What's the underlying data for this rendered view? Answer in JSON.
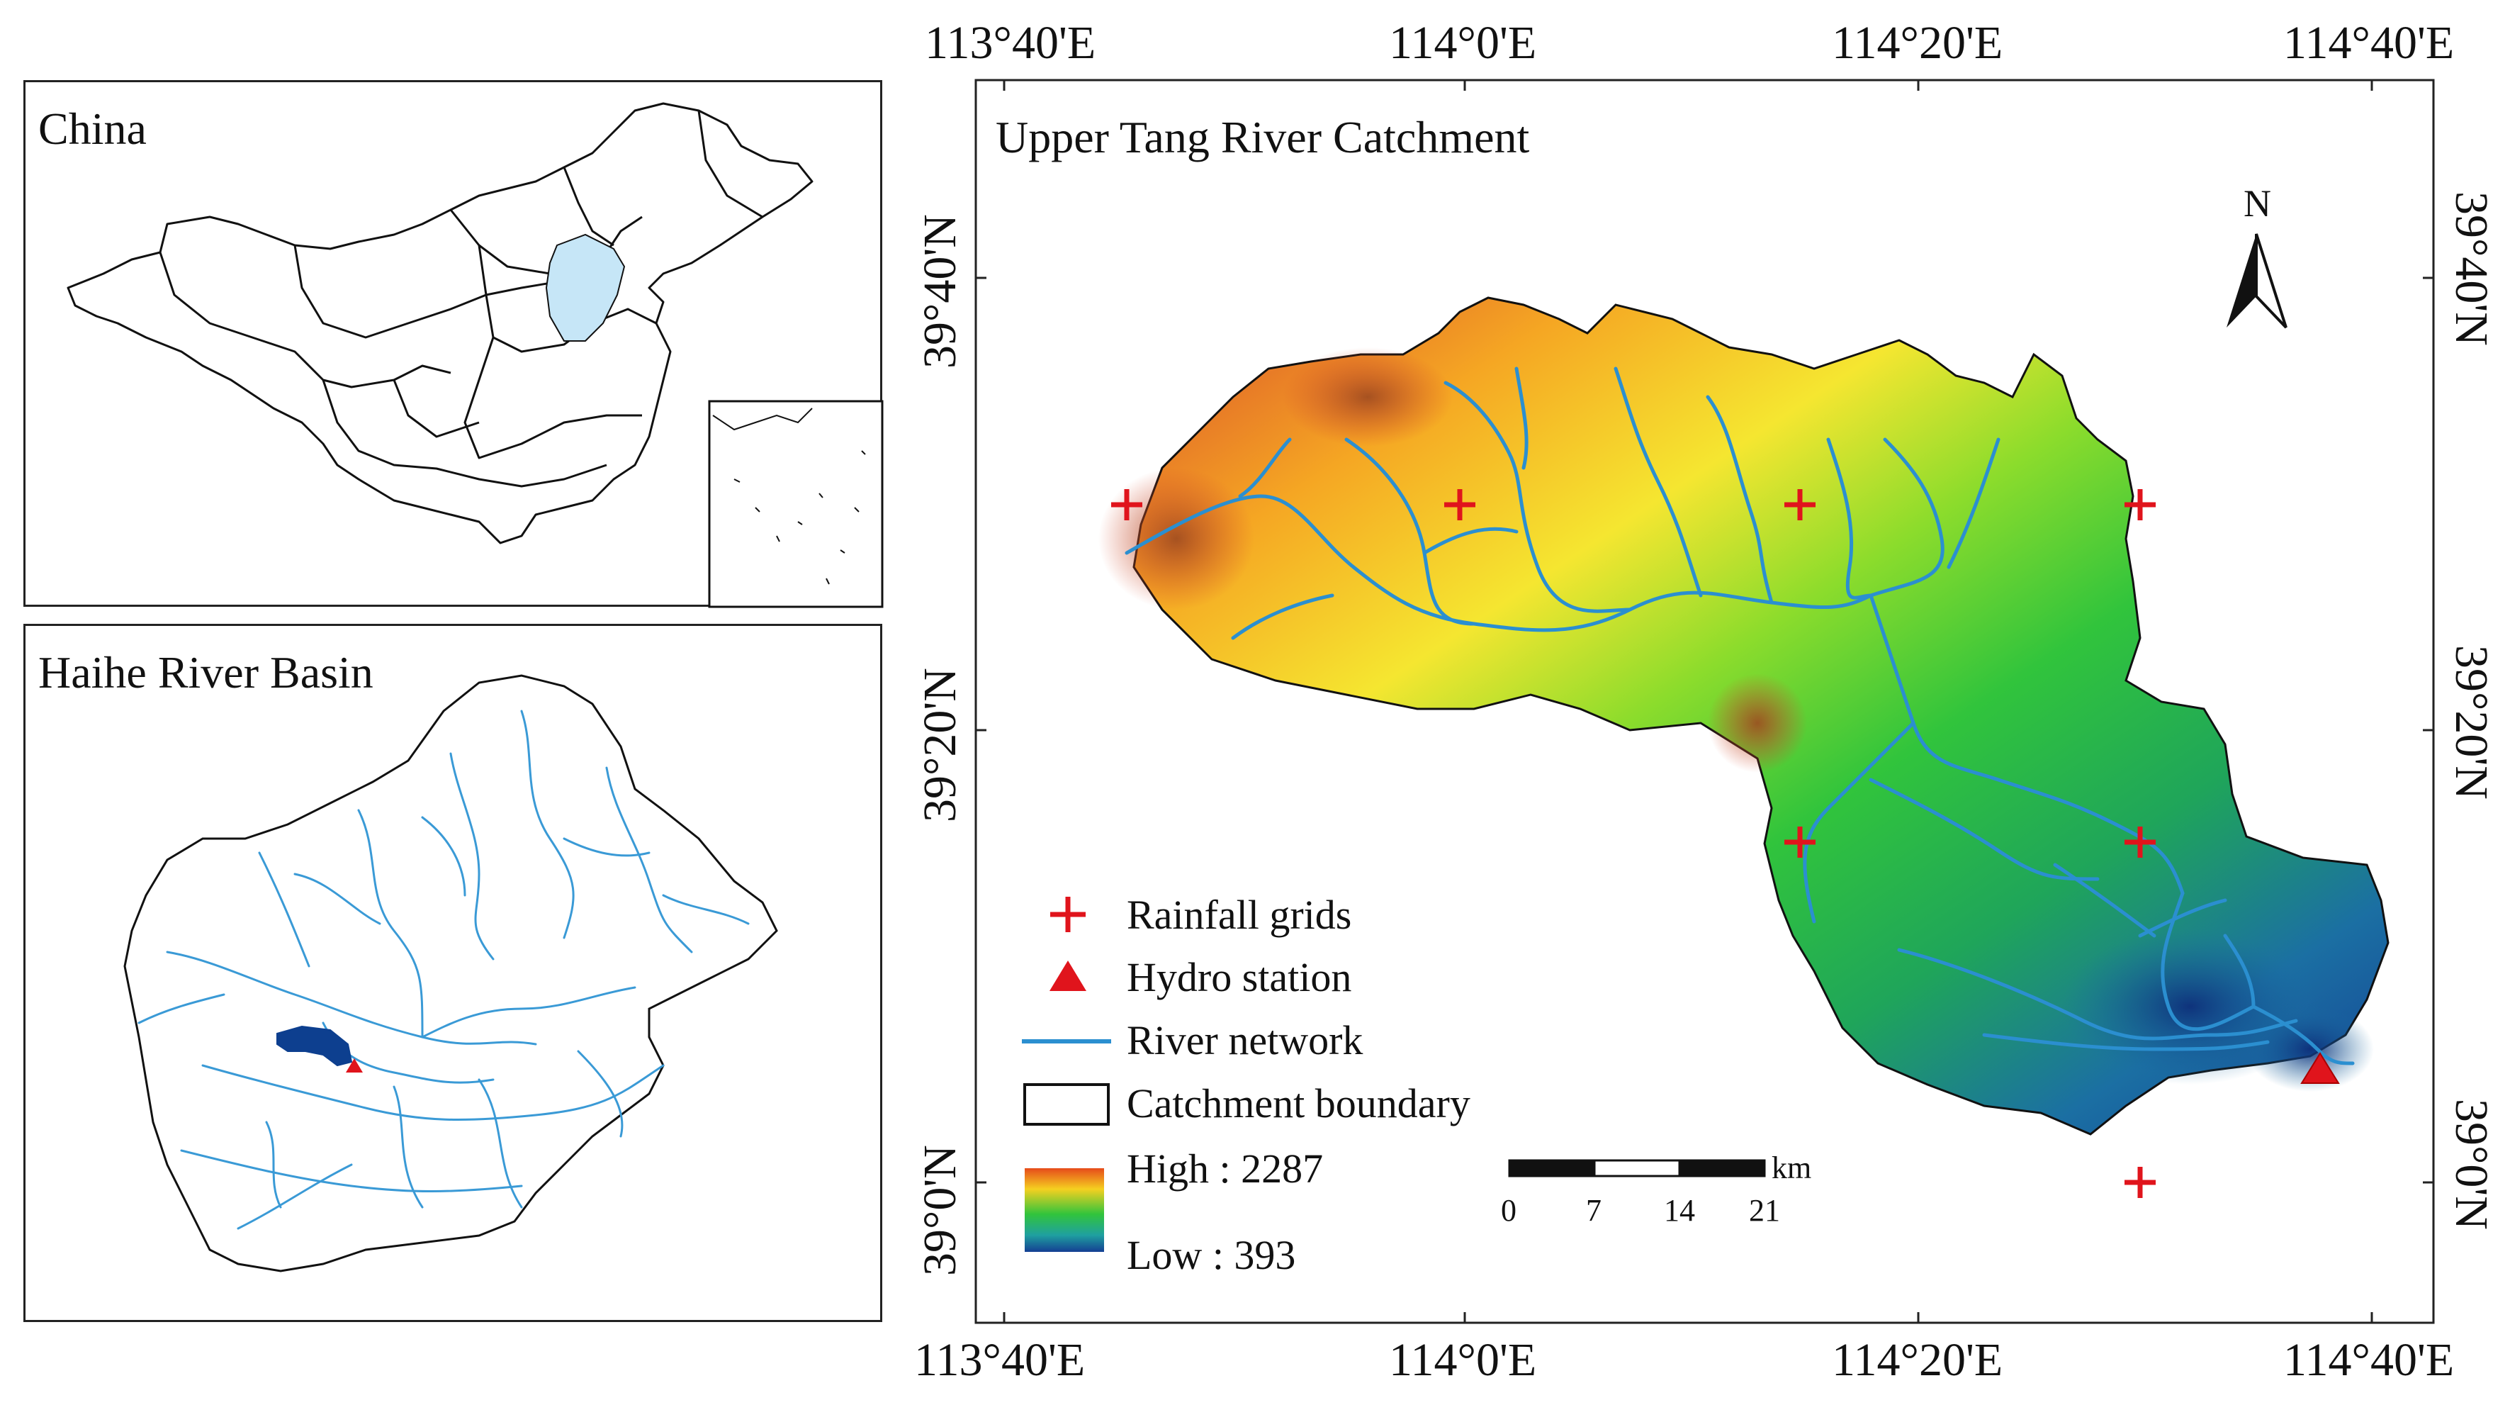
{
  "china_inset": {
    "title": "China"
  },
  "haihe_inset": {
    "title": "Haihe River Basin"
  },
  "main_map": {
    "title": "Upper Tang River  Catchment",
    "north_label": "N",
    "top_ticks": [
      "113°40'E",
      "114°0'E",
      "114°20'E",
      "114°40'E"
    ],
    "bottom_ticks": [
      "113°40'E",
      "114°0'E",
      "114°20'E",
      "114°40'E"
    ],
    "left_ticks": [
      "39°40'N",
      "39°20'N",
      "39°0'N"
    ],
    "right_ticks": [
      "39°40'N",
      "39°20'N",
      "39°0'N"
    ],
    "legend": {
      "rainfall": "Rainfall grids",
      "hydro": "Hydro station",
      "river": "River network",
      "boundary": "Catchment boundary",
      "high": "High : 2287",
      "low": "Low : 393"
    },
    "scale": {
      "labels": [
        "0",
        "7",
        "14",
        "21"
      ],
      "unit": "km"
    },
    "colors": {
      "rainfall_marker": "#e0141c",
      "hydro_marker": "#e0141c",
      "river": "#2b8fd0",
      "elev_high": "#e64b1a",
      "elev_mid": "#31c43c",
      "elev_low": "#143f93",
      "haihe_catchment": "#0d3f8f",
      "china_highlight": "#c6e6f7"
    }
  }
}
